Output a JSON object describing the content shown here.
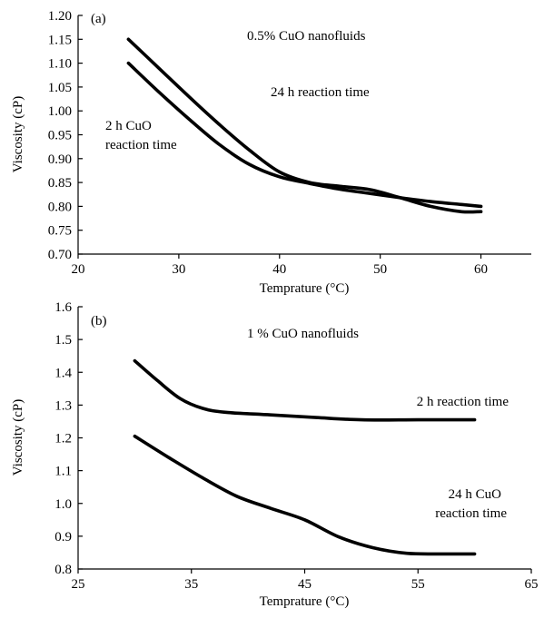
{
  "chart_data": [
    {
      "type": "line",
      "panel_label": "(a)",
      "title": "0.5% CuO nanofluids",
      "xlabel": "Temprature (°C)",
      "ylabel": "Viscosity (cP)",
      "xlim": [
        20,
        65
      ],
      "ylim": [
        0.7,
        1.2
      ],
      "x_ticks": [
        20,
        30,
        40,
        50,
        60
      ],
      "x_tick_labels": [
        "20",
        "30",
        "40",
        "50",
        "60"
      ],
      "y_ticks": [
        0.7,
        0.75,
        0.8,
        0.85,
        0.9,
        0.95,
        1.0,
        1.05,
        1.1,
        1.15,
        1.2
      ],
      "y_tick_labels": [
        "0.70",
        "0.75",
        "0.80",
        "0.85",
        "0.90",
        "0.95",
        "1.00",
        "1.05",
        "1.10",
        "1.15",
        "1.20"
      ],
      "annotations": [
        {
          "lines": [
            "24 h reaction time"
          ]
        },
        {
          "lines": [
            "2 h CuO",
            "reaction time"
          ]
        }
      ],
      "series": [
        {
          "x": [
            25,
            28,
            31,
            34,
            37,
            40,
            43,
            46,
            49,
            52,
            55,
            58,
            60
          ],
          "y": [
            1.15,
            1.09,
            1.03,
            0.972,
            0.918,
            0.872,
            0.85,
            0.842,
            0.835,
            0.818,
            0.8,
            0.789,
            0.789
          ]
        },
        {
          "x": [
            25,
            28,
            31,
            34,
            37,
            40,
            43,
            46,
            49,
            52,
            55,
            58,
            60
          ],
          "y": [
            1.1,
            1.04,
            0.983,
            0.93,
            0.888,
            0.862,
            0.848,
            0.836,
            0.827,
            0.818,
            0.81,
            0.804,
            0.8
          ]
        }
      ]
    },
    {
      "type": "line",
      "panel_label": "(b)",
      "title": "1 % CuO nanofluids",
      "xlabel": "Temprature (°C)",
      "ylabel": "Viscosity (cP)",
      "xlim": [
        25,
        65
      ],
      "ylim": [
        0.8,
        1.6
      ],
      "x_ticks": [
        25,
        35,
        45,
        55,
        65
      ],
      "x_tick_labels": [
        "25",
        "35",
        "45",
        "55",
        "65"
      ],
      "y_ticks": [
        0.8,
        0.9,
        1.0,
        1.1,
        1.2,
        1.3,
        1.4,
        1.5,
        1.6
      ],
      "y_tick_labels": [
        "0.8",
        "0.9",
        "1.0",
        "1.1",
        "1.2",
        "1.3",
        "1.4",
        "1.5",
        "1.6"
      ],
      "annotations": [
        {
          "lines": [
            "2 h reaction time"
          ]
        },
        {
          "lines": [
            "24 h CuO",
            "reaction time"
          ]
        }
      ],
      "series": [
        {
          "x": [
            30,
            32,
            34,
            36,
            38,
            42,
            46,
            50,
            55,
            60
          ],
          "y": [
            1.435,
            1.375,
            1.32,
            1.29,
            1.278,
            1.27,
            1.262,
            1.255,
            1.255,
            1.255
          ]
        },
        {
          "x": [
            30,
            33,
            36,
            39,
            42,
            45,
            48,
            51,
            54,
            57,
            60
          ],
          "y": [
            1.205,
            1.14,
            1.078,
            1.022,
            0.985,
            0.95,
            0.898,
            0.865,
            0.848,
            0.846,
            0.846
          ]
        }
      ]
    }
  ]
}
